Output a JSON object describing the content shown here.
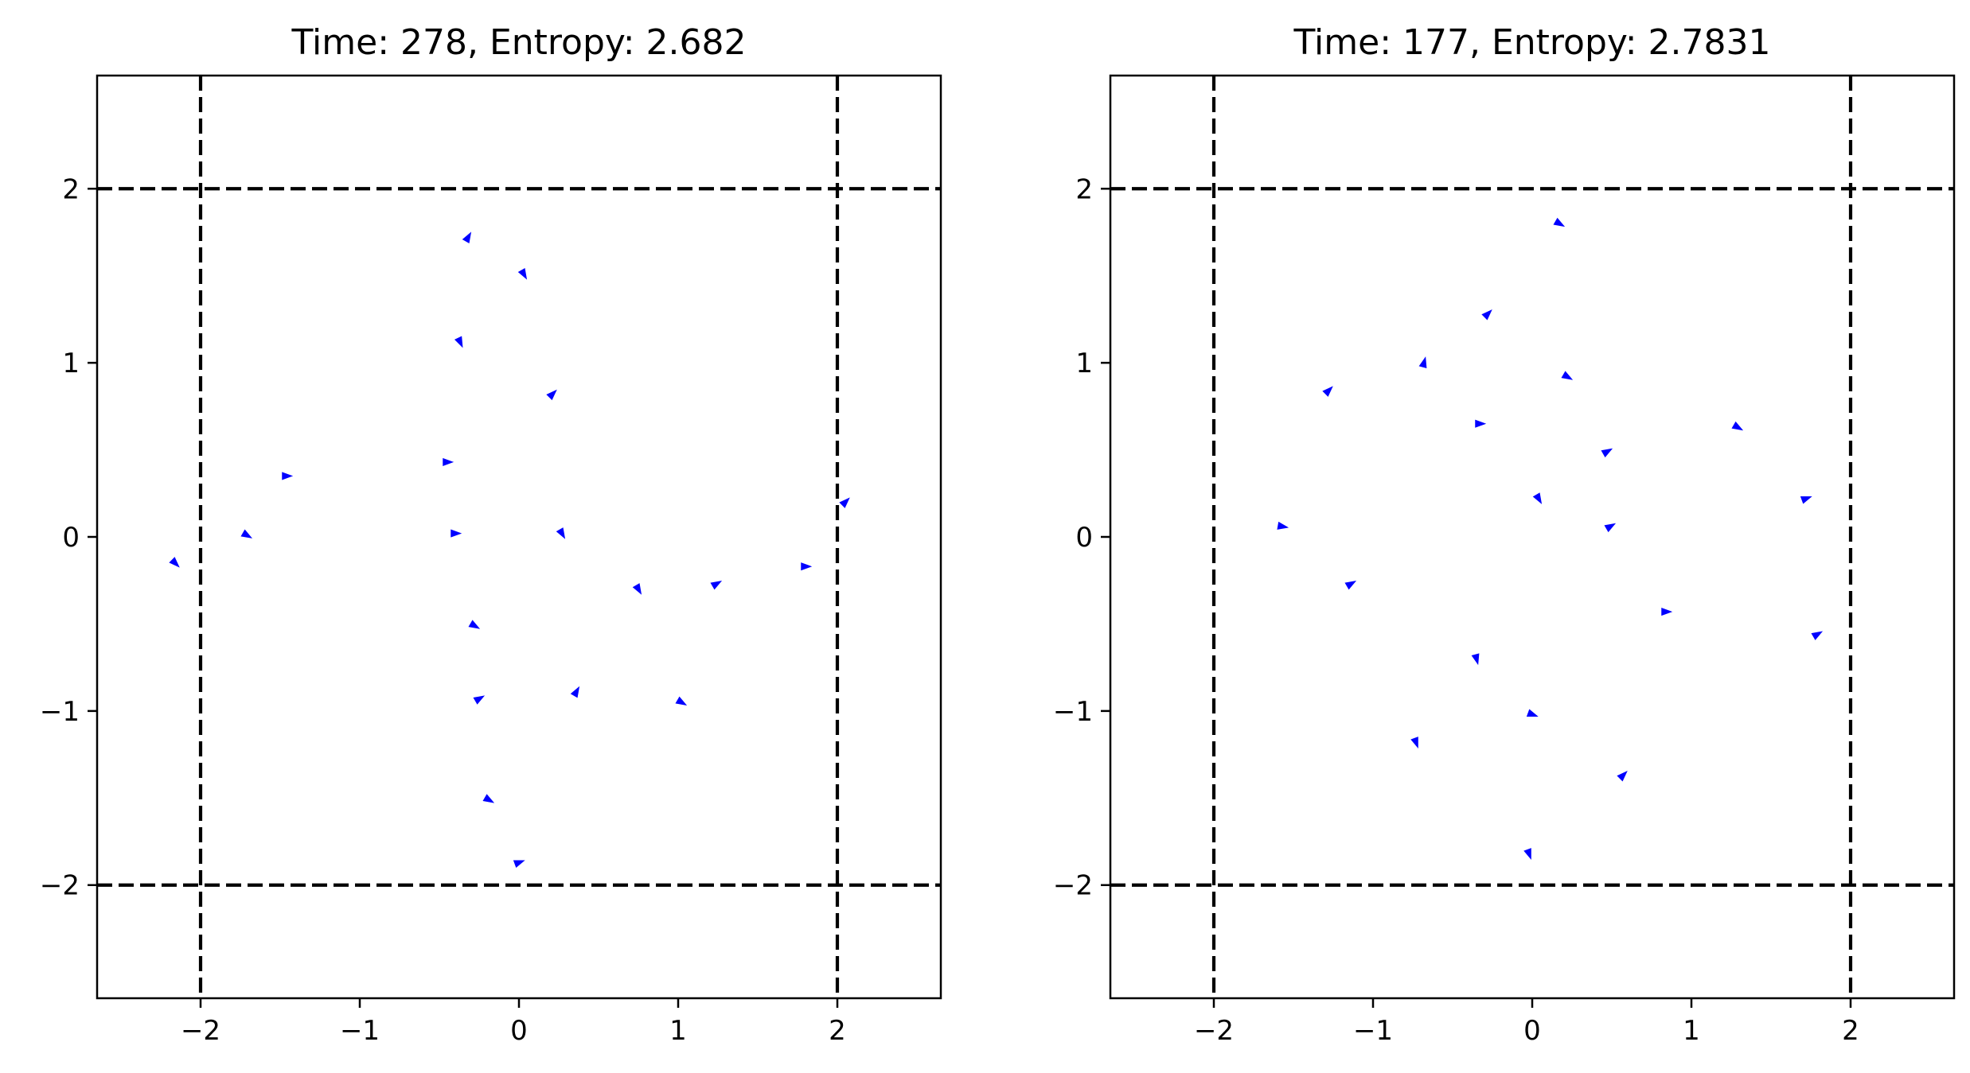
{
  "chart_data": [
    {
      "type": "quiver",
      "title": "Time: 278, Entropy: 2.682",
      "xlim": [
        -2.65,
        2.65
      ],
      "ylim": [
        -2.65,
        2.65
      ],
      "xticks": [
        -2,
        -1,
        0,
        1,
        2
      ],
      "yticks": [
        -2,
        -1,
        0,
        1,
        2
      ],
      "xtick_labels": [
        "−2",
        "−1",
        "0",
        "1",
        "2"
      ],
      "ytick_labels": [
        "−2",
        "−1",
        "0",
        "1",
        "2"
      ],
      "boundaries": {
        "x": [
          -2,
          2
        ],
        "y": [
          -2,
          2
        ],
        "style": "dashed",
        "color": "#000000"
      },
      "arrow_color": "#0000ff",
      "grid": false,
      "points": [
        {
          "x": -0.32,
          "y": 1.72,
          "angle": 60
        },
        {
          "x": 0.03,
          "y": 1.51,
          "angle": -60
        },
        {
          "x": -0.37,
          "y": 1.12,
          "angle": -65
        },
        {
          "x": 0.21,
          "y": 0.82,
          "angle": 45
        },
        {
          "x": -1.46,
          "y": 0.35,
          "angle": 0
        },
        {
          "x": -0.45,
          "y": 0.43,
          "angle": 0
        },
        {
          "x": -2.16,
          "y": -0.15,
          "angle": -45
        },
        {
          "x": -1.71,
          "y": 0.01,
          "angle": -30
        },
        {
          "x": -0.4,
          "y": 0.02,
          "angle": 0
        },
        {
          "x": 0.27,
          "y": 0.02,
          "angle": -60
        },
        {
          "x": 2.05,
          "y": 0.2,
          "angle": 45
        },
        {
          "x": 0.75,
          "y": -0.3,
          "angle": -60
        },
        {
          "x": 1.24,
          "y": -0.27,
          "angle": 30
        },
        {
          "x": 1.8,
          "y": -0.17,
          "angle": 0
        },
        {
          "x": -0.28,
          "y": -0.51,
          "angle": -30
        },
        {
          "x": -0.25,
          "y": -0.93,
          "angle": 30
        },
        {
          "x": 0.36,
          "y": -0.89,
          "angle": 60
        },
        {
          "x": 1.02,
          "y": -0.95,
          "angle": -30
        },
        {
          "x": -0.19,
          "y": -1.51,
          "angle": -30
        },
        {
          "x": 0.0,
          "y": -1.87,
          "angle": 20
        }
      ]
    },
    {
      "type": "quiver",
      "title": "Time: 177, Entropy: 2.7831",
      "xlim": [
        -2.65,
        2.65
      ],
      "ylim": [
        -2.65,
        2.65
      ],
      "xticks": [
        -2,
        -1,
        0,
        1,
        2
      ],
      "yticks": [
        -2,
        -1,
        0,
        1,
        2
      ],
      "xtick_labels": [
        "−2",
        "−1",
        "0",
        "1",
        "2"
      ],
      "ytick_labels": [
        "−2",
        "−1",
        "0",
        "1",
        "2"
      ],
      "boundaries": {
        "x": [
          -2,
          2
        ],
        "y": [
          -2,
          2
        ],
        "style": "dashed",
        "color": "#000000"
      },
      "arrow_color": "#0000ff",
      "grid": false,
      "points": [
        {
          "x": 0.17,
          "y": 1.8,
          "angle": -30
        },
        {
          "x": -0.28,
          "y": 1.28,
          "angle": 45
        },
        {
          "x": -0.68,
          "y": 1.0,
          "angle": 75
        },
        {
          "x": 0.22,
          "y": 0.92,
          "angle": -30
        },
        {
          "x": -1.28,
          "y": 0.84,
          "angle": 45
        },
        {
          "x": 1.29,
          "y": 0.63,
          "angle": -30
        },
        {
          "x": -0.33,
          "y": 0.65,
          "angle": 0
        },
        {
          "x": 0.47,
          "y": 0.49,
          "angle": 30
        },
        {
          "x": 0.04,
          "y": 0.22,
          "angle": -60
        },
        {
          "x": 1.72,
          "y": 0.22,
          "angle": 20
        },
        {
          "x": -1.57,
          "y": 0.06,
          "angle": -10
        },
        {
          "x": 0.49,
          "y": 0.06,
          "angle": 30
        },
        {
          "x": -1.14,
          "y": -0.27,
          "angle": 30
        },
        {
          "x": 0.84,
          "y": -0.43,
          "angle": 0
        },
        {
          "x": 1.79,
          "y": -0.56,
          "angle": 30
        },
        {
          "x": -0.35,
          "y": -0.7,
          "angle": -75
        },
        {
          "x": 0.0,
          "y": -1.02,
          "angle": -20
        },
        {
          "x": -0.73,
          "y": -1.18,
          "angle": -70
        },
        {
          "x": 0.57,
          "y": -1.37,
          "angle": 45
        },
        {
          "x": -0.02,
          "y": -1.82,
          "angle": -70
        }
      ]
    }
  ]
}
